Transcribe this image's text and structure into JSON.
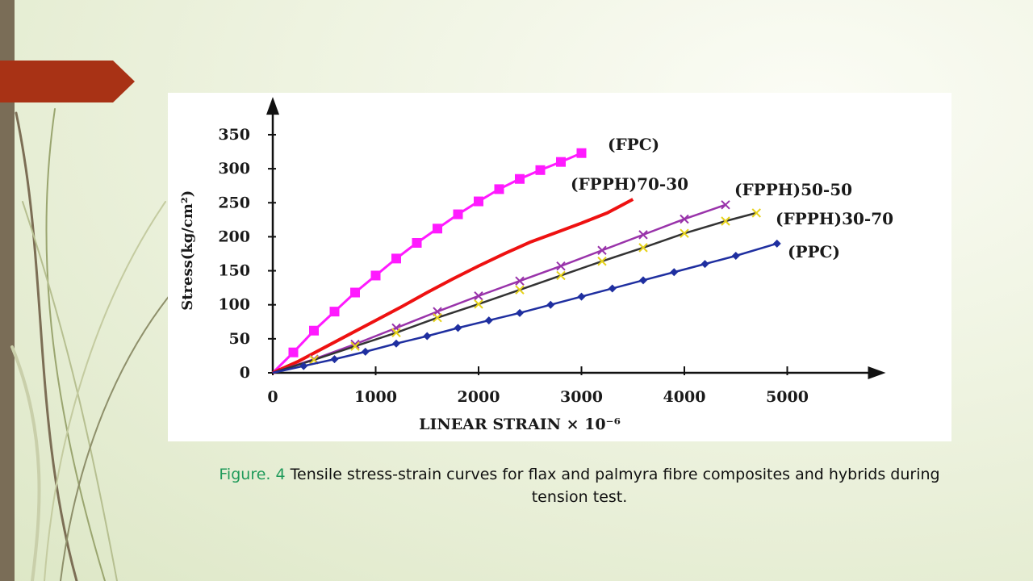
{
  "caption": {
    "label": "Figure. 4",
    "text": "Tensile stress-strain curves for flax and palmyra fibre composites and hybrids during tension test."
  },
  "theme": {
    "side_bar_color": "#7a6d57",
    "accent_arrow_color": "#a83215",
    "caption_label_color": "#1f9a5a"
  },
  "chart_data": {
    "type": "line",
    "title": "",
    "xlabel": "LINEAR STRAIN × 10⁻⁶",
    "ylabel": "Stress(kg/cm²)",
    "xlim": [
      0,
      5800
    ],
    "ylim": [
      0,
      370
    ],
    "xticks": [
      0,
      1000,
      2000,
      3000,
      4000,
      5000
    ],
    "yticks": [
      0,
      50,
      100,
      150,
      200,
      250,
      300,
      350
    ],
    "grid": false,
    "legend": "inline labels at line ends",
    "series": [
      {
        "name": "(FPC)",
        "color": "#ff1aff",
        "marker": "square",
        "x": [
          0,
          200,
          400,
          600,
          800,
          1000,
          1200,
          1400,
          1600,
          1800,
          2000,
          2200,
          2400,
          2600,
          2800,
          3000
        ],
        "y": [
          0,
          30,
          62,
          90,
          118,
          143,
          168,
          191,
          212,
          233,
          252,
          270,
          285,
          298,
          310,
          323
        ]
      },
      {
        "name": "(FPPH)70-30",
        "color": "#ee1111",
        "marker": "none",
        "x": [
          0,
          250,
          500,
          750,
          1000,
          1250,
          1500,
          1750,
          2000,
          2250,
          2500,
          2750,
          3000,
          3250,
          3500
        ],
        "y": [
          0,
          17,
          37,
          57,
          77,
          97,
          118,
          138,
          157,
          175,
          192,
          206,
          220,
          235,
          255
        ]
      },
      {
        "name": "(FPPH)50-50",
        "color": "#9933aa",
        "marker": "x",
        "x": [
          0,
          400,
          800,
          1200,
          1600,
          2000,
          2400,
          2800,
          3200,
          3600,
          4000,
          4400
        ],
        "y": [
          0,
          20,
          42,
          66,
          90,
          113,
          135,
          157,
          180,
          203,
          226,
          247
        ]
      },
      {
        "name": "(FPPH)30-70",
        "color": "#333333",
        "marker": "yellow-x",
        "x": [
          0,
          400,
          800,
          1200,
          1600,
          2000,
          2400,
          2800,
          3200,
          3600,
          4000,
          4400,
          4700
        ],
        "y": [
          0,
          19,
          39,
          59,
          81,
          101,
          122,
          143,
          164,
          184,
          205,
          223,
          235
        ]
      },
      {
        "name": "(PPC)",
        "color": "#1f2fa0",
        "marker": "diamond",
        "x": [
          0,
          300,
          600,
          900,
          1200,
          1500,
          1800,
          2100,
          2400,
          2700,
          3000,
          3300,
          3600,
          3900,
          4200,
          4500,
          4900
        ],
        "y": [
          0,
          10,
          20,
          31,
          43,
          54,
          66,
          77,
          88,
          100,
          112,
          124,
          136,
          148,
          160,
          172,
          190
        ]
      }
    ]
  }
}
